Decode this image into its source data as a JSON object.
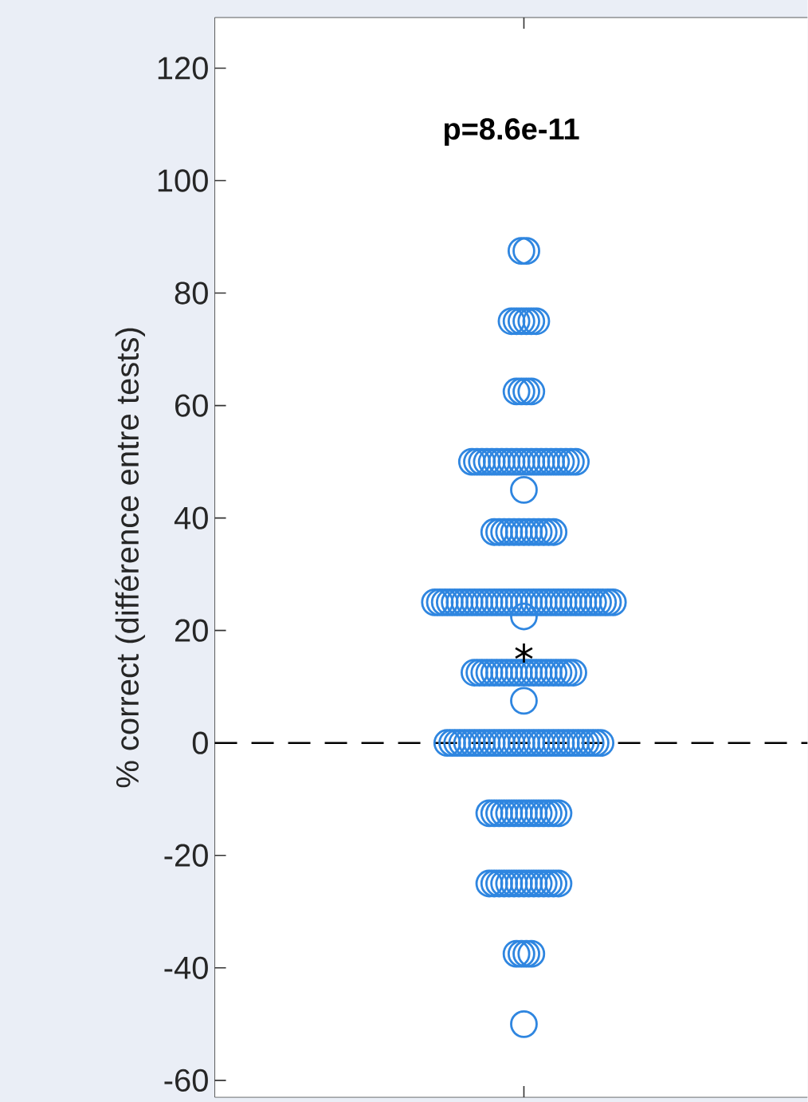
{
  "chart_data": {
    "type": "scatter",
    "annotations": [
      "p=8.6e-11"
    ],
    "ylabel": "% correct (différence entre tests)",
    "categories": [
      null
    ],
    "ylim": [
      -63,
      129
    ],
    "yticks": [
      -60,
      -40,
      -20,
      0,
      20,
      40,
      60,
      80,
      100,
      120
    ],
    "ref_lines": [
      {
        "axis": "y",
        "value": 0,
        "label": null,
        "color": "#000000",
        "line_style": "dashed"
      }
    ],
    "series": [
      {
        "color": "#2f86e0",
        "marker": "circle",
        "x": [
          null,
          null,
          null,
          null,
          null,
          null,
          null,
          null,
          null,
          null,
          null,
          null,
          null,
          null,
          null,
          null,
          null,
          null,
          null,
          null,
          null,
          null,
          null,
          null,
          null,
          null,
          null,
          null,
          null,
          null,
          null,
          null,
          null,
          null,
          null,
          null,
          null,
          null,
          null,
          null,
          null,
          null,
          null,
          null,
          null,
          null,
          null,
          null,
          null,
          null,
          null,
          null,
          null,
          null,
          null,
          null,
          null,
          null,
          null,
          null,
          null,
          null,
          null,
          null,
          null,
          null,
          null,
          null,
          null,
          null,
          null,
          null,
          null,
          null,
          null,
          null,
          null,
          null,
          null,
          null,
          null,
          null,
          null,
          null,
          null,
          null,
          null,
          null,
          null,
          null,
          null,
          null,
          null,
          null,
          null,
          null,
          null,
          null,
          null,
          null,
          null,
          null,
          null,
          null,
          null,
          null,
          null,
          null,
          null,
          null,
          null,
          null,
          null,
          null,
          null,
          null,
          null,
          null,
          null,
          null,
          null,
          null,
          null,
          null,
          null,
          null,
          null,
          null,
          null,
          null,
          null,
          null,
          null,
          null,
          null,
          null,
          null,
          null,
          null,
          null,
          null,
          null,
          null,
          null,
          null,
          null,
          null,
          null,
          null,
          null,
          null,
          null,
          null,
          null,
          null,
          null,
          null,
          null,
          null,
          null,
          null,
          null,
          null,
          null,
          null,
          null,
          null,
          null,
          null,
          null,
          null,
          null,
          null,
          null,
          null
        ],
        "values": [
          87.5,
          87.5,
          75,
          75,
          75,
          75,
          75,
          75,
          62.5,
          62.5,
          62.5,
          62.5,
          50,
          50,
          50,
          50,
          50,
          50,
          50,
          50,
          50,
          50,
          50,
          50,
          50,
          50,
          50,
          50,
          50,
          50,
          50,
          50,
          50,
          50,
          45,
          37.5,
          37.5,
          37.5,
          37.5,
          37.5,
          37.5,
          37.5,
          37.5,
          37.5,
          37.5,
          37.5,
          37.5,
          37.5,
          25,
          25,
          25,
          25,
          25,
          25,
          25,
          25,
          25,
          25,
          25,
          25,
          25,
          25,
          25,
          25,
          25,
          25,
          25,
          25,
          25,
          25,
          25,
          25,
          25,
          25,
          25,
          25,
          25,
          25,
          25,
          25,
          25,
          25,
          25,
          25,
          25,
          22.5,
          12.5,
          12.5,
          12.5,
          12.5,
          12.5,
          12.5,
          12.5,
          12.5,
          12.5,
          12.5,
          12.5,
          12.5,
          12.5,
          12.5,
          12.5,
          12.5,
          12.5,
          12.5,
          12.5,
          12.5,
          12.5,
          7.5,
          0,
          0,
          0,
          0,
          0,
          0,
          0,
          0,
          0,
          0,
          0,
          0,
          0,
          0,
          0,
          0,
          0,
          0,
          0,
          0,
          0,
          0,
          0,
          0,
          0,
          0,
          0,
          0,
          0,
          0,
          0,
          0,
          -12.5,
          -12.5,
          -12.5,
          -12.5,
          -12.5,
          -12.5,
          -12.5,
          -12.5,
          -12.5,
          -12.5,
          -12.5,
          -12.5,
          -12.5,
          -12.5,
          -12.5,
          -25,
          -25,
          -25,
          -25,
          -25,
          -25,
          -25,
          -25,
          -25,
          -25,
          -25,
          -25,
          -25,
          -25,
          -25,
          -37.5,
          -37.5,
          -37.5,
          -37.5,
          -50
        ]
      },
      {
        "color": "#000000",
        "marker": "cross",
        "x": [
          null
        ],
        "values": [
          16
        ]
      }
    ]
  }
}
